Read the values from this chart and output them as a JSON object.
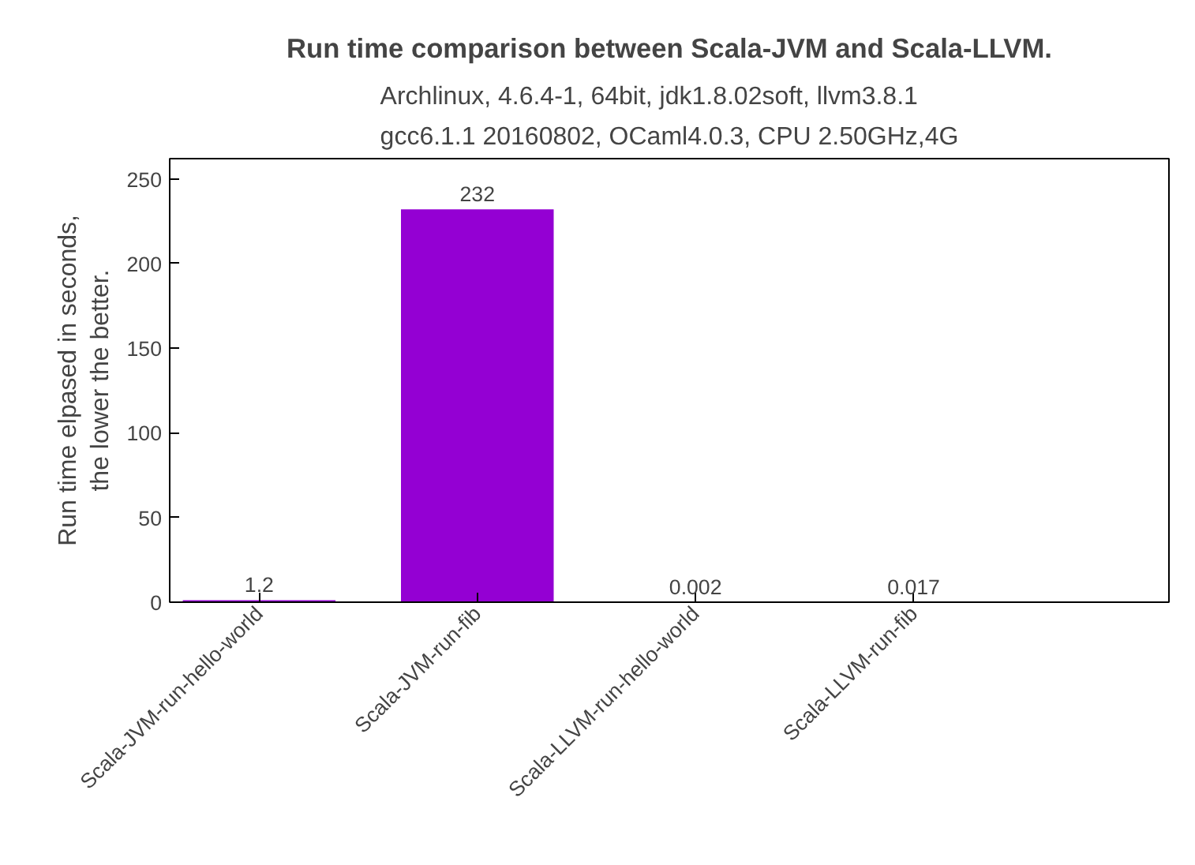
{
  "chart_data": {
    "type": "bar",
    "title": "Run time comparison between Scala-JVM and Scala-LLVM.",
    "subtitle": "Archlinux, 4.6.4-1, 64bit, jdk1.8.02soft, llvm3.8.1\ngcc6.1.1 20160802, OCaml4.0.3, CPU 2.50GHz,4G",
    "ylabel": "Run time elpased in seconds,\nthe lower the better.",
    "categories": [
      "Scala-JVM-run-hello-world",
      "Scala-JVM-run-fib",
      "Scala-LLVM-run-hello-world",
      "Scala-LLVM-run-fib"
    ],
    "values": [
      1.2,
      232,
      0.002,
      0.017
    ],
    "color": "#9400d3",
    "data_labels": true,
    "ylim": [
      0,
      262
    ],
    "yticks": [
      0,
      50,
      100,
      150,
      200,
      250
    ],
    "grid": false
  }
}
